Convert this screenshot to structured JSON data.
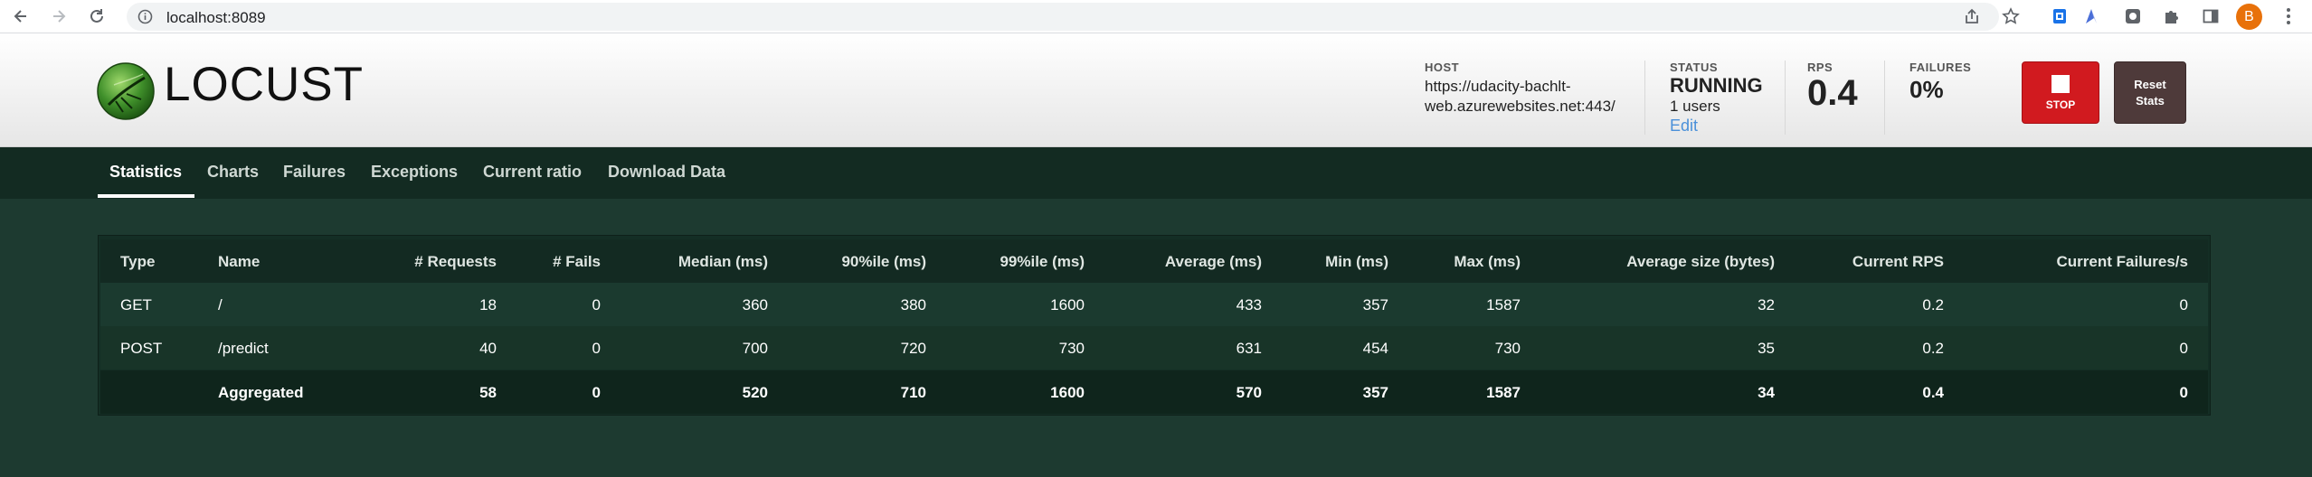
{
  "browser": {
    "url": "localhost:8089",
    "profile_initial": "B"
  },
  "header": {
    "logo_text": "LOCUST",
    "host_label": "HOST",
    "host_value": "https://udacity-bachlt-web.azurewebsites.net:443/",
    "status_label": "STATUS",
    "status_value": "RUNNING",
    "users_value": "1 users",
    "edit_label": "Edit",
    "rps_label": "RPS",
    "rps_value": "0.4",
    "failures_label": "FAILURES",
    "failures_value": "0%",
    "stop_label": "STOP",
    "reset_label": "Reset Stats"
  },
  "tabs": [
    {
      "label": "Statistics"
    },
    {
      "label": "Charts"
    },
    {
      "label": "Failures"
    },
    {
      "label": "Exceptions"
    },
    {
      "label": "Current ratio"
    },
    {
      "label": "Download Data"
    }
  ],
  "table": {
    "columns": [
      "Type",
      "Name",
      "# Requests",
      "# Fails",
      "Median (ms)",
      "90%ile (ms)",
      "99%ile (ms)",
      "Average (ms)",
      "Min (ms)",
      "Max (ms)",
      "Average size (bytes)",
      "Current RPS",
      "Current Failures/s"
    ],
    "rows": [
      [
        "GET",
        "/",
        "18",
        "0",
        "360",
        "380",
        "1600",
        "433",
        "357",
        "1587",
        "32",
        "0.2",
        "0"
      ],
      [
        "POST",
        "/predict",
        "40",
        "0",
        "700",
        "720",
        "730",
        "631",
        "454",
        "730",
        "35",
        "0.2",
        "0"
      ]
    ],
    "aggregated": [
      "",
      "Aggregated",
      "58",
      "0",
      "520",
      "710",
      "1600",
      "570",
      "357",
      "1587",
      "34",
      "0.4",
      "0"
    ]
  }
}
